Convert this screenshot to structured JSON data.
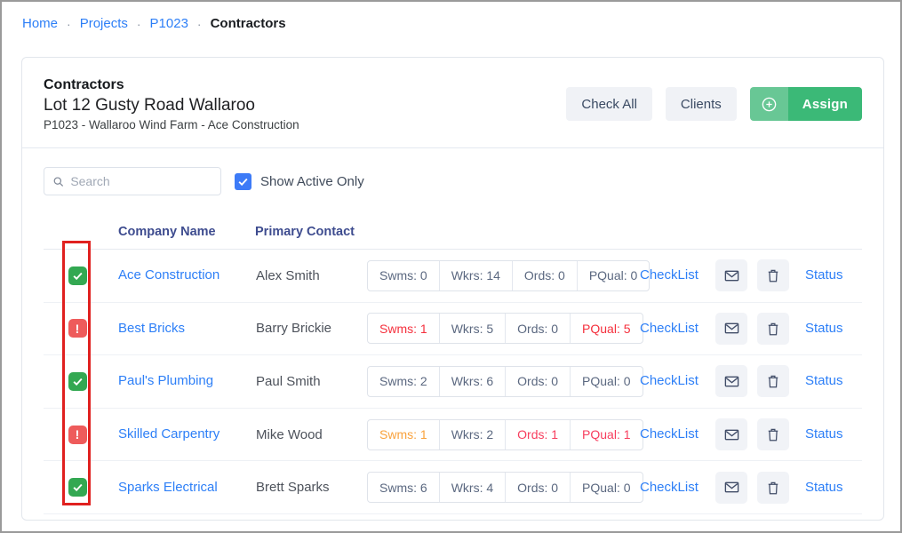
{
  "breadcrumb": {
    "items": [
      {
        "label": "Home"
      },
      {
        "label": "Projects"
      },
      {
        "label": "P1023"
      }
    ],
    "current": "Contractors",
    "separator": "·"
  },
  "header": {
    "title": "Contractors",
    "subtitle": "Lot 12 Gusty Road Wallaroo",
    "meta": "P1023 - Wallaroo Wind Farm - Ace Construction",
    "buttons": {
      "check_all": "Check All",
      "clients": "Clients",
      "assign": "Assign"
    }
  },
  "toolbar": {
    "search_placeholder": "Search",
    "show_active_label": "Show Active Only",
    "show_active_checked": true
  },
  "table": {
    "columns": {
      "company": "Company Name",
      "contact": "Primary Contact"
    },
    "links": {
      "checklist": "CheckList",
      "status": "Status"
    },
    "rows": [
      {
        "status_icon": "check",
        "company": "Ace Construction",
        "contact": "Alex Smith",
        "stats": [
          {
            "label": "Swms",
            "value": "0",
            "state": "normal"
          },
          {
            "label": "Wkrs",
            "value": "14",
            "state": "normal"
          },
          {
            "label": "Ords",
            "value": "0",
            "state": "normal"
          },
          {
            "label": "PQual",
            "value": "0",
            "state": "normal"
          }
        ]
      },
      {
        "status_icon": "alert",
        "company": "Best Bricks",
        "contact": "Barry Brickie",
        "stats": [
          {
            "label": "Swms",
            "value": "1",
            "state": "red"
          },
          {
            "label": "Wkrs",
            "value": "5",
            "state": "normal"
          },
          {
            "label": "Ords",
            "value": "0",
            "state": "normal"
          },
          {
            "label": "PQual",
            "value": "5",
            "state": "red"
          }
        ]
      },
      {
        "status_icon": "check",
        "company": "Paul's Plumbing",
        "contact": "Paul Smith",
        "stats": [
          {
            "label": "Swms",
            "value": "2",
            "state": "normal"
          },
          {
            "label": "Wkrs",
            "value": "6",
            "state": "normal"
          },
          {
            "label": "Ords",
            "value": "0",
            "state": "normal"
          },
          {
            "label": "PQual",
            "value": "0",
            "state": "normal"
          }
        ]
      },
      {
        "status_icon": "alert",
        "company": "Skilled Carpentry",
        "contact": "Mike Wood",
        "stats": [
          {
            "label": "Swms",
            "value": "1",
            "state": "orange"
          },
          {
            "label": "Wkrs",
            "value": "2",
            "state": "normal"
          },
          {
            "label": "Ords",
            "value": "1",
            "state": "pink"
          },
          {
            "label": "PQual",
            "value": "1",
            "state": "pink"
          }
        ]
      },
      {
        "status_icon": "check",
        "company": "Sparks Electrical",
        "contact": "Brett Sparks",
        "stats": [
          {
            "label": "Swms",
            "value": "6",
            "state": "normal"
          },
          {
            "label": "Wkrs",
            "value": "4",
            "state": "normal"
          },
          {
            "label": "Ords",
            "value": "0",
            "state": "normal"
          },
          {
            "label": "PQual",
            "value": "0",
            "state": "normal"
          }
        ]
      }
    ]
  },
  "icons": {
    "search": "magnifier",
    "assign": "plus-circle",
    "email": "envelope",
    "delete": "trash",
    "status_ok": "check",
    "status_attention": "exclamation"
  },
  "colors": {
    "link_blue": "#2d7ff7",
    "assign_green": "#3bb977",
    "assign_green_light": "#68c795",
    "checkbox_blue": "#3d7bf7",
    "status_green": "#33a852",
    "status_red": "#ee5b5b",
    "stat_red": "#f5303d",
    "stat_orange": "#f9a23c",
    "stat_pink": "#f73e5e",
    "annotation_red": "#e0201f",
    "table_header_text": "#3e4c8f"
  }
}
